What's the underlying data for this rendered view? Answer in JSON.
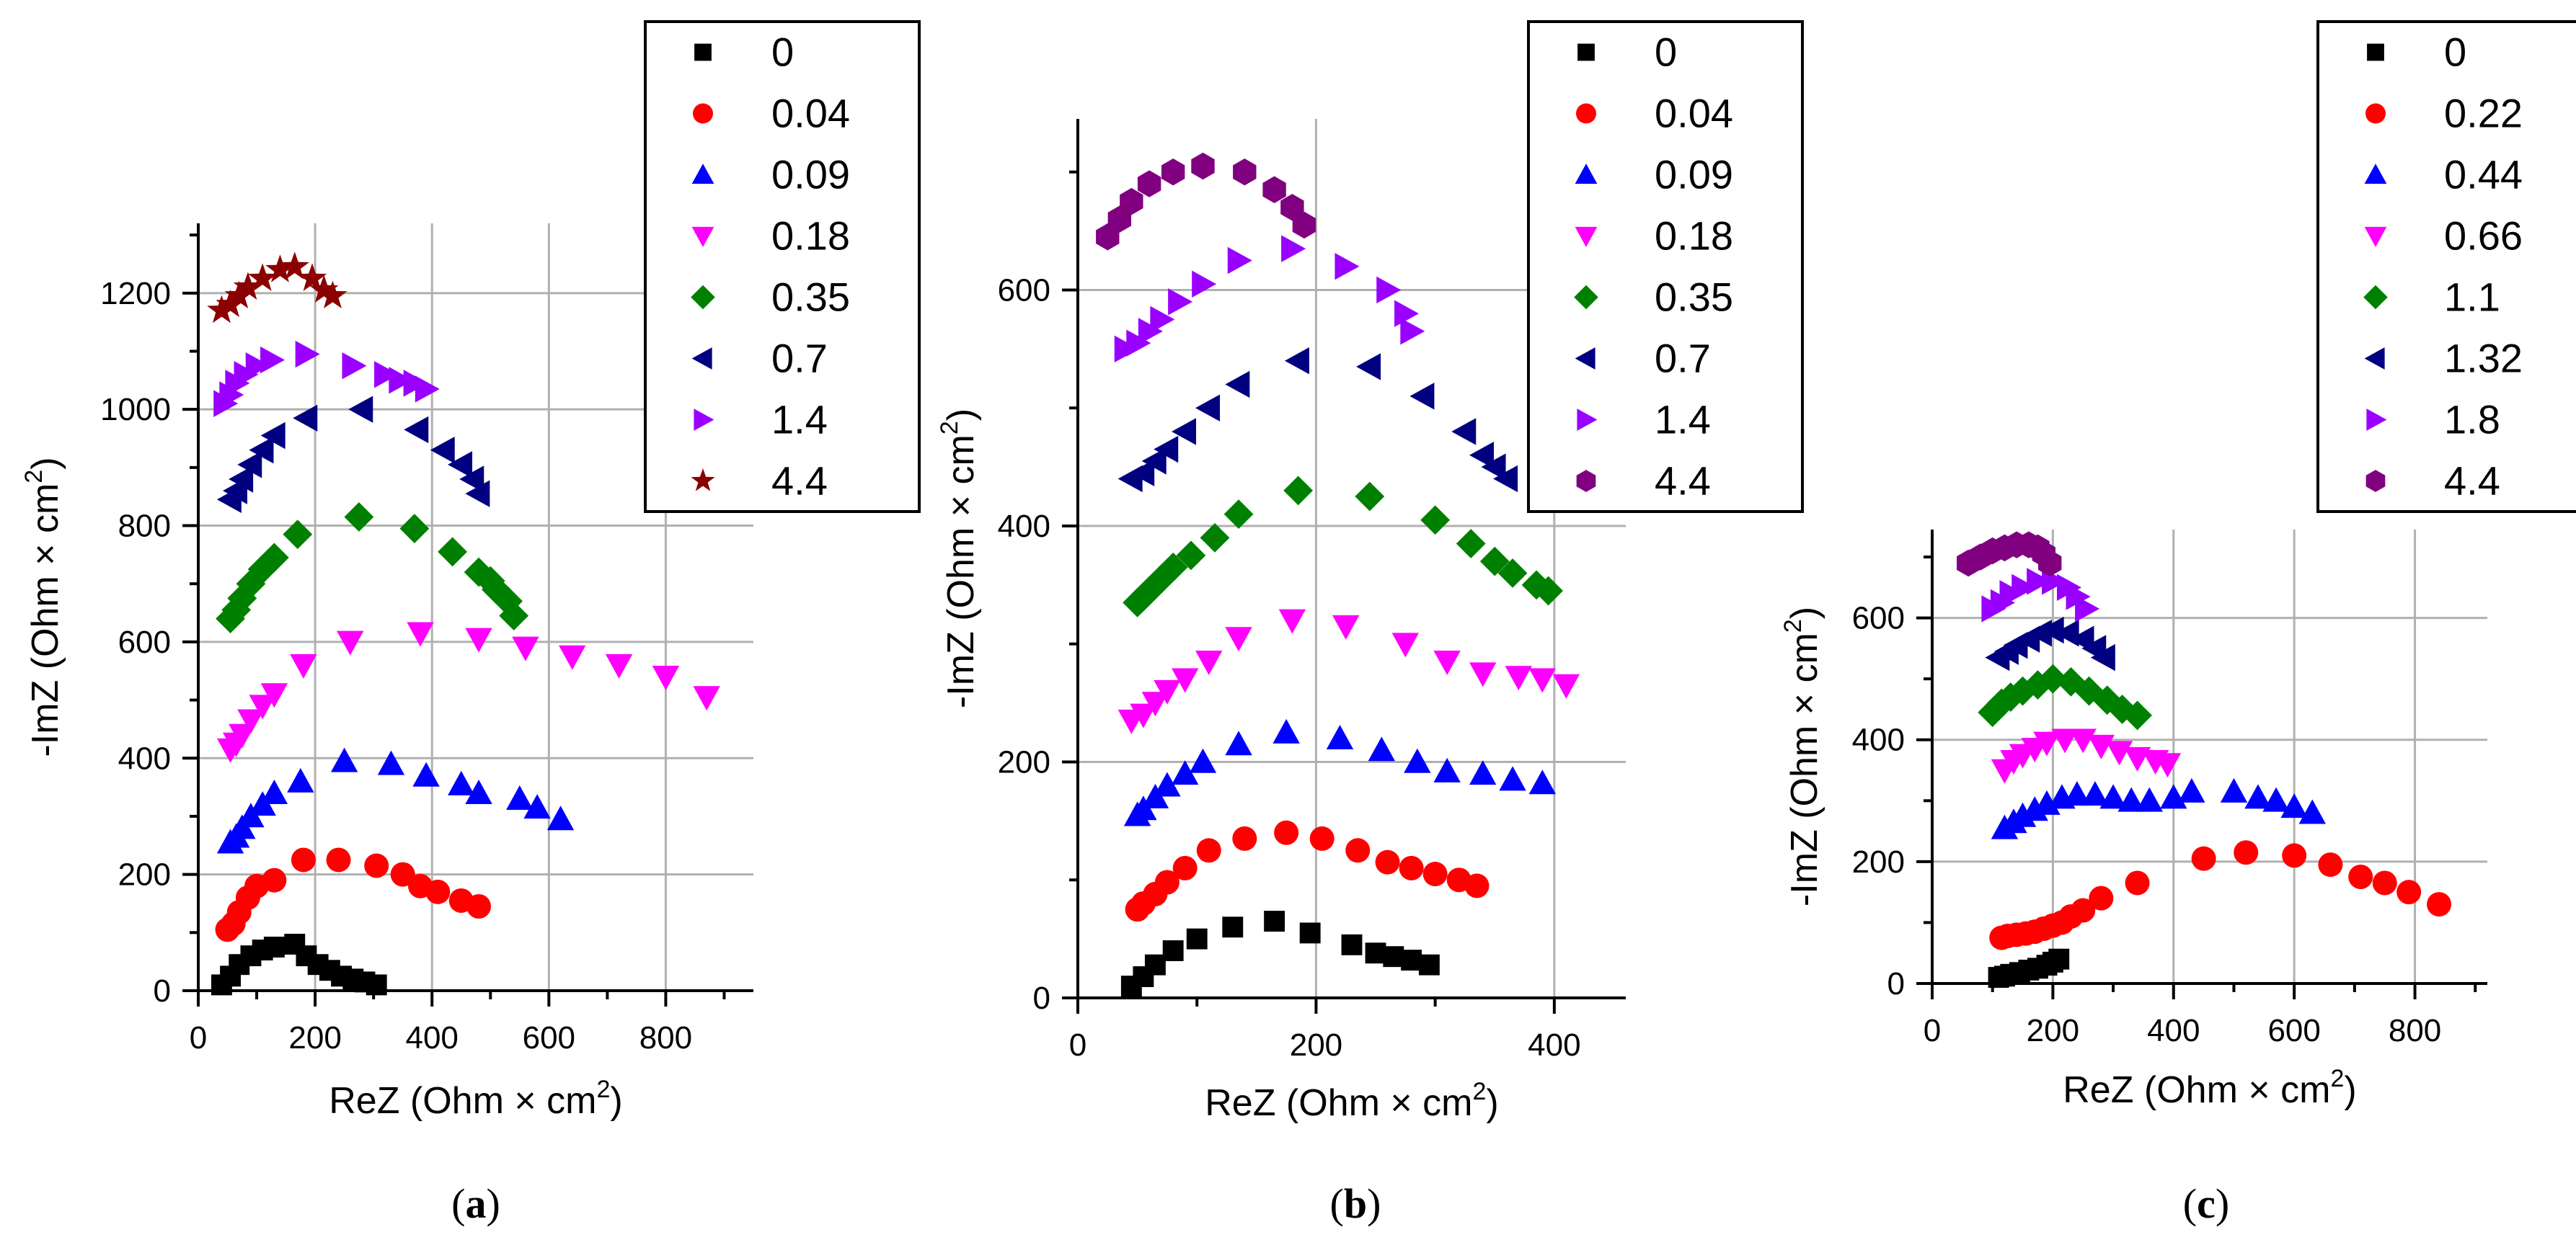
{
  "figure": {
    "captions": [
      "(a)",
      "(b)",
      "(c)"
    ],
    "caption_letters": [
      "a",
      "b",
      "c"
    ]
  },
  "chart_data": [
    {
      "type": "scatter",
      "panel": "a",
      "xlabel": "ReZ (Ohm × cm²)",
      "ylabel": "-ImZ (Ohm × cm²)",
      "xlim": [
        0,
        950
      ],
      "ylim": [
        0,
        1320
      ],
      "xticks": [
        0,
        200,
        400,
        600,
        800
      ],
      "yticks": [
        0,
        200,
        400,
        600,
        800,
        1000,
        1200
      ],
      "grid": true,
      "legend_position": "top-right",
      "series": [
        {
          "name": "0",
          "marker": "square",
          "color": "#000000",
          "x": [
            40,
            55,
            70,
            90,
            110,
            130,
            165,
            185,
            205,
            225,
            245,
            265,
            285,
            305
          ],
          "y": [
            10,
            25,
            45,
            60,
            70,
            75,
            80,
            60,
            45,
            35,
            25,
            20,
            15,
            10
          ]
        },
        {
          "name": "0.04",
          "marker": "circle",
          "color": "#ff0000",
          "x": [
            50,
            60,
            70,
            85,
            100,
            130,
            180,
            240,
            305,
            350,
            380,
            410,
            450,
            480
          ],
          "y": [
            105,
            115,
            135,
            160,
            180,
            190,
            225,
            225,
            215,
            200,
            180,
            170,
            155,
            145
          ]
        },
        {
          "name": "0.09",
          "marker": "triangle-up",
          "color": "#0000ff",
          "x": [
            55,
            65,
            75,
            90,
            110,
            130,
            175,
            250,
            330,
            390,
            450,
            480,
            550,
            580,
            620
          ],
          "y": [
            255,
            265,
            280,
            300,
            320,
            340,
            360,
            395,
            390,
            370,
            355,
            340,
            330,
            315,
            295
          ]
        },
        {
          "name": "0.18",
          "marker": "triangle-down",
          "color": "#ff00ff",
          "x": [
            55,
            65,
            75,
            90,
            110,
            130,
            180,
            260,
            380,
            480,
            560,
            640,
            720,
            800,
            870
          ],
          "y": [
            415,
            425,
            440,
            465,
            490,
            510,
            560,
            600,
            615,
            605,
            590,
            575,
            560,
            540,
            505
          ]
        },
        {
          "name": "0.35",
          "marker": "diamond",
          "color": "#008000",
          "x": [
            55,
            65,
            75,
            90,
            110,
            130,
            170,
            275,
            370,
            435,
            480,
            500,
            510,
            530,
            540
          ],
          "y": [
            640,
            655,
            675,
            700,
            725,
            745,
            785,
            815,
            795,
            755,
            720,
            705,
            690,
            670,
            645
          ]
        },
        {
          "name": "0.7",
          "marker": "triangle-left",
          "color": "#000080",
          "x": [
            55,
            65,
            75,
            90,
            110,
            130,
            185,
            280,
            375,
            420,
            450,
            470,
            480
          ],
          "y": [
            845,
            860,
            880,
            905,
            930,
            955,
            985,
            1000,
            965,
            930,
            905,
            880,
            855
          ]
        },
        {
          "name": "1.4",
          "marker": "triangle-right",
          "color": "#9900ff",
          "x": [
            45,
            55,
            65,
            80,
            100,
            125,
            185,
            265,
            320,
            345,
            370,
            390
          ],
          "y": [
            1010,
            1025,
            1045,
            1060,
            1075,
            1085,
            1095,
            1075,
            1060,
            1050,
            1045,
            1035
          ]
        },
        {
          "name": "4.4",
          "marker": "star",
          "color": "#8b0000",
          "x": [
            40,
            55,
            70,
            85,
            110,
            140,
            165,
            195,
            215,
            230
          ],
          "y": [
            1170,
            1180,
            1195,
            1210,
            1225,
            1240,
            1245,
            1225,
            1205,
            1195
          ]
        }
      ]
    },
    {
      "type": "scatter",
      "panel": "b",
      "xlabel": "ReZ (Ohm × cm²)",
      "ylabel": "-ImZ (Ohm × cm²)",
      "xlim": [
        0,
        460
      ],
      "ylim": [
        0,
        745
      ],
      "xticks": [
        0,
        200,
        400
      ],
      "yticks": [
        0,
        200,
        400,
        600
      ],
      "grid": true,
      "legend_position": "top-right",
      "series": [
        {
          "name": "0",
          "marker": "square",
          "color": "#000000",
          "x": [
            45,
            55,
            65,
            80,
            100,
            130,
            165,
            195,
            230,
            250,
            265,
            280,
            295
          ],
          "y": [
            10,
            18,
            28,
            40,
            50,
            60,
            65,
            55,
            45,
            38,
            35,
            32,
            28
          ]
        },
        {
          "name": "0.04",
          "marker": "circle",
          "color": "#ff0000",
          "x": [
            50,
            55,
            65,
            75,
            90,
            110,
            140,
            175,
            205,
            235,
            260,
            280,
            300,
            320,
            335
          ],
          "y": [
            75,
            80,
            88,
            98,
            110,
            125,
            135,
            140,
            135,
            125,
            115,
            110,
            105,
            100,
            95
          ]
        },
        {
          "name": "0.09",
          "marker": "triangle-up",
          "color": "#0000ff",
          "x": [
            50,
            55,
            65,
            75,
            90,
            105,
            135,
            175,
            220,
            255,
            285,
            310,
            340,
            365,
            390
          ],
          "y": [
            155,
            160,
            170,
            180,
            190,
            200,
            215,
            225,
            220,
            210,
            200,
            192,
            190,
            185,
            182
          ]
        },
        {
          "name": "0.18",
          "marker": "triangle-down",
          "color": "#ff00ff",
          "x": [
            45,
            55,
            65,
            75,
            90,
            110,
            135,
            180,
            225,
            275,
            310,
            340,
            370,
            390,
            410
          ],
          "y": [
            235,
            240,
            250,
            260,
            270,
            285,
            305,
            320,
            315,
            300,
            285,
            275,
            272,
            270,
            265
          ]
        },
        {
          "name": "0.35",
          "marker": "diamond",
          "color": "#008000",
          "x": [
            50,
            55,
            60,
            70,
            80,
            95,
            115,
            135,
            185,
            245,
            300,
            330,
            350,
            365,
            385,
            395
          ],
          "y": [
            335,
            340,
            345,
            355,
            365,
            375,
            390,
            410,
            430,
            425,
            405,
            385,
            370,
            360,
            350,
            345
          ]
        },
        {
          "name": "0.7",
          "marker": "triangle-left",
          "color": "#000080",
          "x": [
            45,
            55,
            65,
            75,
            90,
            110,
            135,
            185,
            245,
            290,
            325,
            340,
            350,
            360
          ],
          "y": [
            440,
            445,
            455,
            465,
            480,
            500,
            520,
            540,
            535,
            510,
            480,
            460,
            450,
            440
          ]
        },
        {
          "name": "1.4",
          "marker": "triangle-right",
          "color": "#9900ff",
          "x": [
            40,
            50,
            60,
            70,
            85,
            105,
            135,
            180,
            225,
            260,
            275,
            280
          ],
          "y": [
            550,
            555,
            565,
            575,
            590,
            605,
            625,
            635,
            620,
            600,
            580,
            565
          ]
        },
        {
          "name": "4.4",
          "marker": "hexagon",
          "color": "#800080",
          "x": [
            25,
            35,
            45,
            60,
            80,
            105,
            140,
            165,
            180,
            190
          ],
          "y": [
            645,
            660,
            675,
            690,
            700,
            705,
            700,
            685,
            670,
            655
          ]
        }
      ]
    },
    {
      "type": "scatter",
      "panel": "c",
      "xlabel": "ReZ (Ohm × cm²)",
      "ylabel": "-ImZ (Ohm × cm²)",
      "xlim": [
        0,
        920
      ],
      "ylim": [
        0,
        745
      ],
      "xticks": [
        0,
        200,
        400,
        600,
        800
      ],
      "yticks": [
        0,
        200,
        400,
        600
      ],
      "grid": true,
      "legend_position": "top-right",
      "series": [
        {
          "name": "0",
          "marker": "square",
          "color": "#000000",
          "x": [
            110,
            120,
            130,
            145,
            160,
            175,
            190,
            200,
            210
          ],
          "y": [
            10,
            12,
            15,
            18,
            22,
            25,
            30,
            35,
            40
          ]
        },
        {
          "name": "0.22",
          "marker": "circle",
          "color": "#ff0000",
          "x": [
            115,
            125,
            140,
            155,
            170,
            185,
            200,
            215,
            230,
            250,
            280,
            340,
            450,
            520,
            600,
            660,
            710,
            750,
            790,
            840
          ],
          "y": [
            75,
            78,
            80,
            82,
            85,
            90,
            95,
            100,
            110,
            120,
            140,
            165,
            205,
            215,
            210,
            195,
            175,
            165,
            150,
            130
          ]
        },
        {
          "name": "0.44",
          "marker": "triangle-up",
          "color": "#0000ff",
          "x": [
            120,
            135,
            150,
            170,
            190,
            215,
            240,
            270,
            300,
            330,
            360,
            400,
            430,
            500,
            540,
            570,
            600,
            630
          ],
          "y": [
            255,
            265,
            275,
            285,
            295,
            305,
            310,
            310,
            305,
            300,
            300,
            305,
            315,
            315,
            305,
            300,
            290,
            280
          ]
        },
        {
          "name": "0.66",
          "marker": "triangle-down",
          "color": "#ff00ff",
          "x": [
            120,
            135,
            150,
            170,
            190,
            220,
            250,
            280,
            310,
            340,
            370,
            390
          ],
          "y": [
            350,
            365,
            375,
            385,
            395,
            400,
            400,
            390,
            380,
            370,
            365,
            360
          ]
        },
        {
          "name": "1.1",
          "marker": "diamond",
          "color": "#008000",
          "x": [
            100,
            115,
            130,
            150,
            175,
            200,
            230,
            260,
            290,
            315,
            340
          ],
          "y": [
            445,
            460,
            470,
            480,
            490,
            500,
            495,
            480,
            465,
            450,
            440
          ]
        },
        {
          "name": "1.32",
          "marker": "triangle-left",
          "color": "#000080",
          "x": [
            110,
            125,
            140,
            160,
            180,
            200,
            225,
            250,
            270,
            285
          ],
          "y": [
            535,
            545,
            555,
            565,
            575,
            580,
            575,
            565,
            550,
            535
          ]
        },
        {
          "name": "1.8",
          "marker": "triangle-right",
          "color": "#9900ff",
          "x": [
            100,
            115,
            130,
            150,
            175,
            200,
            225,
            240,
            255
          ],
          "y": [
            615,
            625,
            640,
            650,
            660,
            660,
            650,
            635,
            615
          ]
        },
        {
          "name": "4.4",
          "marker": "hexagon",
          "color": "#800080",
          "x": [
            60,
            80,
            100,
            120,
            140,
            160,
            175,
            185,
            195
          ],
          "y": [
            690,
            700,
            710,
            715,
            720,
            720,
            715,
            705,
            690
          ]
        }
      ]
    }
  ]
}
